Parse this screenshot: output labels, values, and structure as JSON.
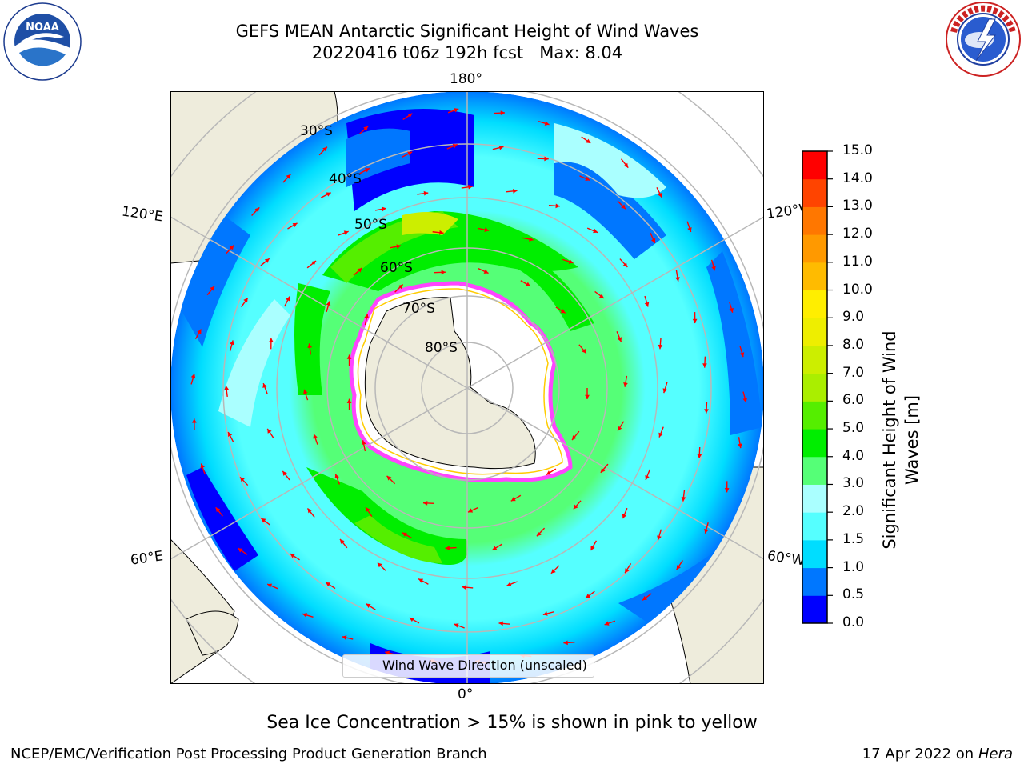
{
  "title": {
    "line1": "GEFS MEAN Antarctic Significant Height of Wind Waves",
    "line2": "20220416 t06z 192h fcst   Max: 8.04"
  },
  "logos": {
    "left": {
      "text_ring": "NATIONAL OCEANIC AND ATMOSPHERIC ADMINISTRATION · U.S. DEPARTMENT OF COMMERCE",
      "center": "NOAA"
    },
    "right": {
      "text_ring": "NATIONAL WEATHER SERVICE"
    }
  },
  "map": {
    "projection": "south-polar-stereographic",
    "longitude_labels": {
      "top": "180°",
      "bottom": "0°",
      "upper_left": "120°E",
      "lower_left": "60°E",
      "upper_right": "120°W",
      "lower_right": "60°W"
    },
    "latitude_labels": [
      "30°S",
      "40°S",
      "50°S",
      "60°S",
      "70°S",
      "80°S"
    ],
    "colors": {
      "land": "#eeecdc",
      "ice_interior": "#ffffff",
      "ice_edge": "#ff44ff",
      "arrows": "#ff0000",
      "grid": "#b8b8b8"
    }
  },
  "legend": {
    "label": "Wind Wave Direction (unscaled)"
  },
  "colorbar": {
    "label": "Significant Height of Wind Waves [m]",
    "label_line1": "Significant Height of Wind",
    "label_line2": "Waves [m]",
    "levels": [
      "0.0",
      "0.5",
      "1.0",
      "1.5",
      "2.0",
      "3.0",
      "4.0",
      "5.0",
      "6.0",
      "7.0",
      "8.0",
      "9.0",
      "10.0",
      "11.0",
      "12.0",
      "13.0",
      "14.0",
      "15.0"
    ],
    "colors": [
      "#0000ff",
      "#0077ff",
      "#00ddff",
      "#55ffff",
      "#aaffff",
      "#55ff77",
      "#00ee00",
      "#55ee00",
      "#aaee00",
      "#ccee00",
      "#eeee00",
      "#ffee00",
      "#ffbb00",
      "#ff9900",
      "#ff7700",
      "#ff4400",
      "#ff0000"
    ]
  },
  "note": "Sea Ice Concentration > 15% is shown in pink to yellow",
  "footer": {
    "left": "NCEP/EMC/Verification Post Processing Product Generation Branch",
    "right_date": "17 Apr 2022 on",
    "right_host": "Hera"
  }
}
